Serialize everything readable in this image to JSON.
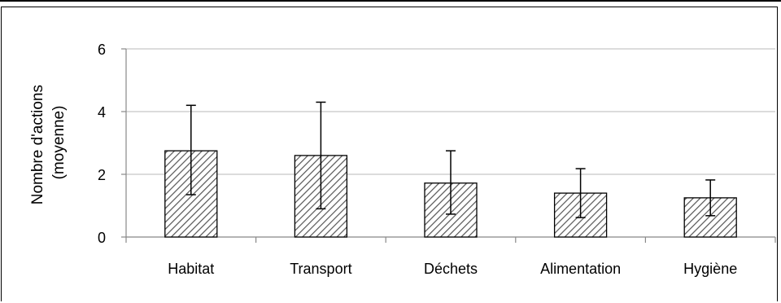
{
  "chart_data": {
    "type": "bar",
    "categories": [
      "Habitat",
      "Transport",
      "Déchets",
      "Alimentation",
      "Hygiène"
    ],
    "values": [
      2.75,
      2.6,
      1.72,
      1.4,
      1.25
    ],
    "error_low": [
      1.35,
      0.9,
      0.73,
      0.62,
      0.68
    ],
    "error_high": [
      4.2,
      4.3,
      2.75,
      2.18,
      1.82
    ],
    "ylabel_lines": [
      "Nombre d'actions",
      "(moyenne)"
    ],
    "ylim": [
      0,
      6
    ],
    "yticks": [
      "0",
      "2",
      "4",
      "6"
    ],
    "ytick_values": [
      0,
      2,
      4,
      6
    ],
    "grid": true,
    "bar_fill": "hatched",
    "colors": {
      "bar_stroke": "#000000",
      "hatch": "#555555",
      "grid": "#c8c8c8",
      "axis": "#888888"
    }
  }
}
